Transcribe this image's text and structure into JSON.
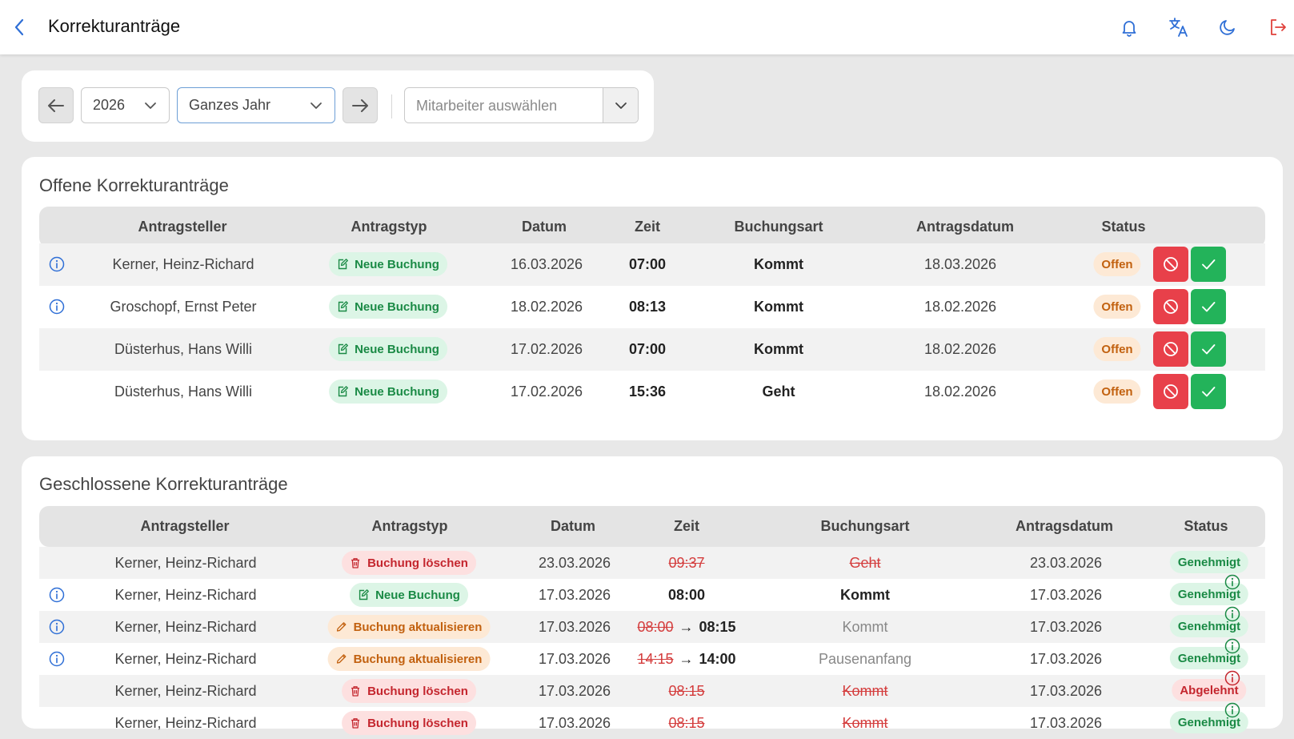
{
  "header": {
    "title": "Korrekturanträge"
  },
  "filters": {
    "year": "2026",
    "period": "Ganzes Jahr",
    "employee_placeholder": "Mitarbeiter auswählen"
  },
  "open_section": {
    "title": "Offene Korrekturanträge",
    "columns": [
      "Antragsteller",
      "Antragstyp",
      "Datum",
      "Zeit",
      "Buchungsart",
      "Antragsdatum",
      "Status"
    ],
    "rows": [
      {
        "name": "Kerner, Heinz-Richard",
        "type": "Neue Buchung",
        "date": "16.03.2026",
        "time": "07:00",
        "booking": "Kommt",
        "request_date": "18.03.2026",
        "status": "Offen",
        "info": true
      },
      {
        "name": "Groschopf, Ernst Peter",
        "type": "Neue Buchung",
        "date": "18.02.2026",
        "time": "08:13",
        "booking": "Kommt",
        "request_date": "18.02.2026",
        "status": "Offen",
        "info": true
      },
      {
        "name": "Düsterhus, Hans Willi",
        "type": "Neue Buchung",
        "date": "17.02.2026",
        "time": "07:00",
        "booking": "Kommt",
        "request_date": "18.02.2026",
        "status": "Offen",
        "info": false
      },
      {
        "name": "Düsterhus, Hans Willi",
        "type": "Neue Buchung",
        "date": "17.02.2026",
        "time": "15:36",
        "booking": "Geht",
        "request_date": "18.02.2026",
        "status": "Offen",
        "info": false
      }
    ]
  },
  "closed_section": {
    "title": "Geschlossene Korrekturanträge",
    "columns": [
      "Antragsteller",
      "Antragstyp",
      "Datum",
      "Zeit",
      "Buchungsart",
      "Antragsdatum",
      "Status"
    ],
    "rows": [
      {
        "name": "Kerner, Heinz-Richard",
        "type": "Buchung löschen",
        "date": "23.03.2026",
        "time_old": "09:37",
        "time_new": "",
        "booking": "Geht",
        "request_date": "23.03.2026",
        "status": "Genehmigt",
        "info": false
      },
      {
        "name": "Kerner, Heinz-Richard",
        "type": "Neue Buchung",
        "date": "17.03.2026",
        "time_old": "",
        "time_new": "08:00",
        "booking": "Kommt",
        "request_date": "17.03.2026",
        "status": "Genehmigt",
        "info": true
      },
      {
        "name": "Kerner, Heinz-Richard",
        "type": "Buchung aktualisieren",
        "date": "17.03.2026",
        "time_old": "08:00",
        "time_new": "08:15",
        "booking": "Kommt",
        "request_date": "17.03.2026",
        "status": "Genehmigt",
        "info": true
      },
      {
        "name": "Kerner, Heinz-Richard",
        "type": "Buchung aktualisieren",
        "date": "17.03.2026",
        "time_old": "14:15",
        "time_new": "14:00",
        "booking": "Pausenanfang",
        "request_date": "17.03.2026",
        "status": "Genehmigt",
        "info": true
      },
      {
        "name": "Kerner, Heinz-Richard",
        "type": "Buchung löschen",
        "date": "17.03.2026",
        "time_old": "08:15",
        "time_new": "",
        "booking": "Kommt",
        "request_date": "17.03.2026",
        "status": "Abgelehnt",
        "info": false
      },
      {
        "name": "Kerner, Heinz-Richard",
        "type": "Buchung löschen",
        "date": "17.03.2026",
        "time_old": "08:15",
        "time_new": "",
        "booking": "Kommt",
        "request_date": "17.03.2026",
        "status": "Genehmigt",
        "info": false
      }
    ]
  },
  "colors": {
    "accent": "#2f6fd6",
    "reject": "#e8404a",
    "approve": "#23b35a",
    "logout": "#e0413b"
  },
  "icons": [
    "back-icon",
    "bell-icon",
    "translate-icon",
    "moon-icon",
    "logout-icon",
    "arrow-left-icon",
    "arrow-right-icon",
    "chevron-down-icon",
    "info-icon",
    "ban-icon",
    "check-icon",
    "trash-icon",
    "edit-icon",
    "new-entry-icon"
  ]
}
